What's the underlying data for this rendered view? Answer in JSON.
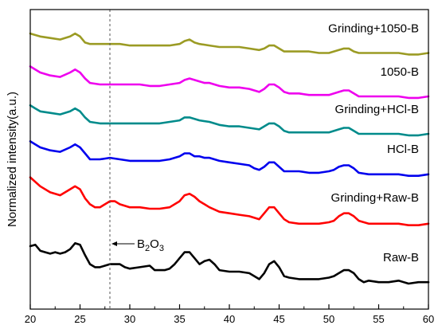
{
  "chart_data": {
    "type": "line",
    "xlabel": "",
    "ylabel": "Normalized intensity(a.u.)",
    "xlim": [
      20,
      60
    ],
    "ylim": [
      0,
      100
    ],
    "x_ticks": [
      20,
      25,
      30,
      35,
      40,
      45,
      50,
      55,
      60
    ],
    "y_ticks_shown": false,
    "grid": false,
    "legend": "inline labels right of each curve",
    "annotation": {
      "text": "B2O3",
      "text_parts": [
        "B",
        "2",
        "O",
        "3"
      ],
      "x": 28,
      "style": "dashed vertical line with arrow"
    },
    "series": [
      {
        "name": "Raw-B",
        "color": "#000000",
        "points": [
          [
            20,
            21
          ],
          [
            20.5,
            21.5
          ],
          [
            21,
            19.5
          ],
          [
            21.5,
            19
          ],
          [
            22,
            18.5
          ],
          [
            22.5,
            19
          ],
          [
            23,
            18.5
          ],
          [
            23.5,
            19
          ],
          [
            24,
            20
          ],
          [
            24.5,
            22
          ],
          [
            25,
            21.5
          ],
          [
            25.5,
            18
          ],
          [
            26,
            15
          ],
          [
            26.5,
            14
          ],
          [
            27,
            14
          ],
          [
            27.5,
            14.5
          ],
          [
            28,
            15
          ],
          [
            28.5,
            15
          ],
          [
            29,
            15
          ],
          [
            29.5,
            14
          ],
          [
            30,
            13.5
          ],
          [
            31,
            14
          ],
          [
            32,
            14.5
          ],
          [
            32.5,
            13
          ],
          [
            33,
            13
          ],
          [
            33.5,
            13
          ],
          [
            34,
            13.5
          ],
          [
            34.5,
            15
          ],
          [
            35,
            17
          ],
          [
            35.5,
            19
          ],
          [
            36,
            19
          ],
          [
            36.5,
            17
          ],
          [
            37,
            15
          ],
          [
            37.5,
            16
          ],
          [
            38,
            16.5
          ],
          [
            38.5,
            15
          ],
          [
            39,
            13
          ],
          [
            40,
            12.5
          ],
          [
            41,
            12.5
          ],
          [
            42,
            12
          ],
          [
            42.5,
            11
          ],
          [
            43,
            10
          ],
          [
            43.5,
            12
          ],
          [
            44,
            15
          ],
          [
            44.5,
            16
          ],
          [
            45,
            14
          ],
          [
            45.5,
            11
          ],
          [
            46,
            10.5
          ],
          [
            47,
            10
          ],
          [
            48,
            10
          ],
          [
            49,
            10
          ],
          [
            50,
            10.5
          ],
          [
            50.5,
            11
          ],
          [
            51,
            12
          ],
          [
            51.5,
            13
          ],
          [
            52,
            13
          ],
          [
            52.5,
            12
          ],
          [
            53,
            10
          ],
          [
            53.5,
            9
          ],
          [
            54,
            9.5
          ],
          [
            55,
            9
          ],
          [
            56,
            9
          ],
          [
            57,
            9.5
          ],
          [
            58,
            8.5
          ],
          [
            59,
            9
          ],
          [
            60,
            9
          ]
        ]
      },
      {
        "name": "Grinding+Raw-B",
        "color": "#ff0000",
        "points": [
          [
            20,
            44
          ],
          [
            21,
            41
          ],
          [
            22,
            39
          ],
          [
            23,
            38
          ],
          [
            24,
            40
          ],
          [
            24.5,
            41
          ],
          [
            25,
            40
          ],
          [
            25.5,
            37
          ],
          [
            26,
            35
          ],
          [
            26.5,
            34
          ],
          [
            27,
            34
          ],
          [
            27.5,
            35
          ],
          [
            28,
            36
          ],
          [
            28.5,
            36
          ],
          [
            29,
            35
          ],
          [
            30,
            34
          ],
          [
            31,
            34
          ],
          [
            32,
            33.5
          ],
          [
            33,
            33.5
          ],
          [
            34,
            34
          ],
          [
            35,
            36
          ],
          [
            35.5,
            38
          ],
          [
            36,
            38.5
          ],
          [
            36.5,
            37.5
          ],
          [
            37,
            36
          ],
          [
            37.5,
            35
          ],
          [
            38,
            34
          ],
          [
            39,
            32.5
          ],
          [
            40,
            32
          ],
          [
            41,
            31.5
          ],
          [
            42,
            31
          ],
          [
            43,
            30
          ],
          [
            43.5,
            32
          ],
          [
            44,
            34
          ],
          [
            44.5,
            34
          ],
          [
            45,
            32
          ],
          [
            45.5,
            30
          ],
          [
            46,
            29
          ],
          [
            47,
            28.5
          ],
          [
            48,
            28.5
          ],
          [
            49,
            28.5
          ],
          [
            50,
            29
          ],
          [
            50.5,
            29.5
          ],
          [
            51,
            31
          ],
          [
            51.5,
            32
          ],
          [
            52,
            32
          ],
          [
            52.5,
            31
          ],
          [
            53,
            29.5
          ],
          [
            54,
            28.5
          ],
          [
            55,
            28.5
          ],
          [
            56,
            28.5
          ],
          [
            57,
            28.5
          ],
          [
            58,
            28
          ],
          [
            59,
            28
          ],
          [
            60,
            28.5
          ]
        ]
      },
      {
        "name": "HCl-B",
        "color": "#0000ee",
        "points": [
          [
            20,
            56
          ],
          [
            20.5,
            55
          ],
          [
            21,
            54
          ],
          [
            22,
            53
          ],
          [
            23,
            52.5
          ],
          [
            24,
            54
          ],
          [
            24.5,
            55
          ],
          [
            25,
            54
          ],
          [
            25.5,
            52
          ],
          [
            26,
            50
          ],
          [
            27,
            50
          ],
          [
            28,
            50.5
          ],
          [
            29,
            50
          ],
          [
            30,
            49.5
          ],
          [
            31,
            49.5
          ],
          [
            32,
            49.5
          ],
          [
            33,
            49.5
          ],
          [
            34,
            50
          ],
          [
            35,
            51
          ],
          [
            35.5,
            52
          ],
          [
            36,
            52
          ],
          [
            36.5,
            51
          ],
          [
            37,
            51
          ],
          [
            37.5,
            50.5
          ],
          [
            38,
            50.5
          ],
          [
            39,
            49.5
          ],
          [
            40,
            49
          ],
          [
            41,
            48.5
          ],
          [
            42,
            48
          ],
          [
            42.5,
            47
          ],
          [
            43,
            46.5
          ],
          [
            43.5,
            47.5
          ],
          [
            44,
            49
          ],
          [
            44.5,
            49
          ],
          [
            45,
            47.5
          ],
          [
            45.5,
            46
          ],
          [
            46,
            46
          ],
          [
            47,
            46
          ],
          [
            48,
            45.5
          ],
          [
            49,
            45.5
          ],
          [
            50,
            46
          ],
          [
            50.5,
            46.5
          ],
          [
            51,
            47.5
          ],
          [
            51.5,
            48
          ],
          [
            52,
            48
          ],
          [
            52.5,
            47
          ],
          [
            53,
            45.5
          ],
          [
            54,
            45
          ],
          [
            55,
            45
          ],
          [
            56,
            45
          ],
          [
            57,
            45
          ],
          [
            58,
            44.5
          ],
          [
            59,
            44.5
          ],
          [
            60,
            45
          ]
        ]
      },
      {
        "name": "Grinding+HCl-B",
        "color": "#008b8b",
        "points": [
          [
            20,
            68
          ],
          [
            20.5,
            67
          ],
          [
            21,
            66
          ],
          [
            22,
            65.5
          ],
          [
            23,
            65
          ],
          [
            24,
            66
          ],
          [
            24.5,
            67
          ],
          [
            25,
            66
          ],
          [
            25.5,
            64
          ],
          [
            26,
            62.5
          ],
          [
            27,
            62
          ],
          [
            28,
            62
          ],
          [
            29,
            62
          ],
          [
            30,
            62
          ],
          [
            31,
            62
          ],
          [
            32,
            62
          ],
          [
            33,
            62
          ],
          [
            34,
            62.5
          ],
          [
            35,
            63
          ],
          [
            35.5,
            64
          ],
          [
            36,
            64
          ],
          [
            36.5,
            63.5
          ],
          [
            37,
            63
          ],
          [
            38,
            62.5
          ],
          [
            39,
            61.5
          ],
          [
            40,
            61
          ],
          [
            41,
            61
          ],
          [
            42,
            60.5
          ],
          [
            43,
            60
          ],
          [
            43.5,
            61
          ],
          [
            44,
            62
          ],
          [
            44.5,
            62
          ],
          [
            45,
            61
          ],
          [
            45.5,
            59.5
          ],
          [
            46,
            59
          ],
          [
            47,
            59
          ],
          [
            48,
            59
          ],
          [
            49,
            59
          ],
          [
            50,
            59
          ],
          [
            51,
            60
          ],
          [
            51.5,
            60.5
          ],
          [
            52,
            60.5
          ],
          [
            52.5,
            59.5
          ],
          [
            53,
            58.5
          ],
          [
            54,
            58.5
          ],
          [
            55,
            58.5
          ],
          [
            56,
            58.5
          ],
          [
            57,
            58.5
          ],
          [
            58,
            58
          ],
          [
            59,
            58
          ],
          [
            60,
            58.5
          ]
        ]
      },
      {
        "name": "1050-B",
        "color": "#ee00ee",
        "points": [
          [
            20,
            81
          ],
          [
            20.5,
            80
          ],
          [
            21,
            79
          ],
          [
            22,
            78
          ],
          [
            23,
            77.5
          ],
          [
            24,
            79
          ],
          [
            24.5,
            80
          ],
          [
            25,
            79
          ],
          [
            25.5,
            77
          ],
          [
            26,
            75.5
          ],
          [
            27,
            75
          ],
          [
            28,
            75
          ],
          [
            29,
            75
          ],
          [
            30,
            75
          ],
          [
            31,
            75
          ],
          [
            32,
            74.5
          ],
          [
            33,
            74.5
          ],
          [
            34,
            75
          ],
          [
            35,
            75.5
          ],
          [
            35.5,
            76.5
          ],
          [
            36,
            77
          ],
          [
            36.5,
            76.5
          ],
          [
            37,
            76
          ],
          [
            37.5,
            75.5
          ],
          [
            38,
            75.5
          ],
          [
            39,
            74.5
          ],
          [
            40,
            74
          ],
          [
            41,
            74
          ],
          [
            42,
            73.5
          ],
          [
            43,
            72.5
          ],
          [
            43.5,
            73.5
          ],
          [
            44,
            75
          ],
          [
            44.5,
            75
          ],
          [
            45,
            74
          ],
          [
            45.5,
            72.5
          ],
          [
            46,
            72
          ],
          [
            47,
            72
          ],
          [
            48,
            71.5
          ],
          [
            49,
            71.5
          ],
          [
            50,
            71.5
          ],
          [
            51,
            72.5
          ],
          [
            51.5,
            73
          ],
          [
            52,
            73
          ],
          [
            52.5,
            72
          ],
          [
            53,
            71
          ],
          [
            54,
            71
          ],
          [
            55,
            71
          ],
          [
            56,
            71
          ],
          [
            57,
            71
          ],
          [
            58,
            70.5
          ],
          [
            59,
            70.5
          ],
          [
            60,
            71
          ]
        ]
      },
      {
        "name": "Grinding+1050-B",
        "color": "#9b9b24",
        "points": [
          [
            20,
            92
          ],
          [
            21,
            91
          ],
          [
            22,
            90.5
          ],
          [
            23,
            90
          ],
          [
            24,
            91
          ],
          [
            24.5,
            92
          ],
          [
            25,
            91
          ],
          [
            25.5,
            89
          ],
          [
            26,
            88.5
          ],
          [
            27,
            88.5
          ],
          [
            28,
            88.5
          ],
          [
            29,
            88.5
          ],
          [
            30,
            88
          ],
          [
            31,
            88
          ],
          [
            32,
            88
          ],
          [
            33,
            88
          ],
          [
            34,
            88
          ],
          [
            35,
            88.5
          ],
          [
            35.5,
            89.5
          ],
          [
            36,
            90
          ],
          [
            36.5,
            89
          ],
          [
            37,
            88.5
          ],
          [
            38,
            88
          ],
          [
            39,
            87.5
          ],
          [
            40,
            87.5
          ],
          [
            41,
            87.5
          ],
          [
            42,
            87
          ],
          [
            43,
            86.5
          ],
          [
            43.5,
            87
          ],
          [
            44,
            88
          ],
          [
            44.5,
            88
          ],
          [
            45,
            87
          ],
          [
            45.5,
            86
          ],
          [
            46,
            86
          ],
          [
            47,
            86
          ],
          [
            48,
            86
          ],
          [
            49,
            85.5
          ],
          [
            50,
            85.5
          ],
          [
            51,
            86.5
          ],
          [
            51.5,
            87
          ],
          [
            52,
            87
          ],
          [
            52.5,
            86
          ],
          [
            53,
            85.5
          ],
          [
            54,
            85.5
          ],
          [
            55,
            85.5
          ],
          [
            56,
            85.5
          ],
          [
            57,
            85.5
          ],
          [
            58,
            85
          ],
          [
            59,
            85
          ],
          [
            60,
            85.5
          ]
        ]
      }
    ]
  }
}
